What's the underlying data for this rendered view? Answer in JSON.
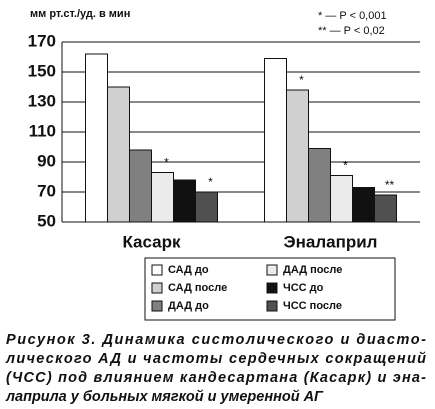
{
  "chart_data": {
    "type": "bar",
    "y_label": "мм рт.ст./уд. в мин",
    "annotations": [
      "* — P < 0,001",
      "** — P < 0,02"
    ],
    "categories": [
      "Касарк",
      "Эналаприл"
    ],
    "series": [
      {
        "name": "САД до",
        "color": "#ffffff",
        "values": [
          162,
          159
        ],
        "significance": [
          null,
          null
        ]
      },
      {
        "name": "САД после",
        "color": "#d0d0d0",
        "values": [
          140,
          138
        ],
        "significance": [
          null,
          "*"
        ]
      },
      {
        "name": "ДАД до",
        "color": "#808080",
        "values": [
          98,
          99
        ],
        "significance": [
          null,
          null
        ]
      },
      {
        "name": "ДАД после",
        "color": "#ebebeb",
        "values": [
          83,
          81
        ],
        "significance": [
          "*",
          "*"
        ]
      },
      {
        "name": "ЧСС до",
        "color": "#111111",
        "values": [
          78,
          73
        ],
        "significance": [
          null,
          null
        ]
      },
      {
        "name": "ЧСС после",
        "color": "#505050",
        "values": [
          70,
          68
        ],
        "significance": [
          "*",
          "**"
        ]
      }
    ],
    "ylim": [
      50,
      170
    ],
    "yticks": [
      50,
      70,
      90,
      110,
      130,
      150,
      170
    ],
    "grid": true
  },
  "caption": {
    "lines": [
      "Рисунок 3. Динамика систолического и диасто-",
      "лического АД и частоты сердечных сокращений",
      "(ЧСС) под влиянием кандесартана (Касарк) и эна-",
      "лаприла у больных мягкой и умеренной АГ"
    ]
  }
}
